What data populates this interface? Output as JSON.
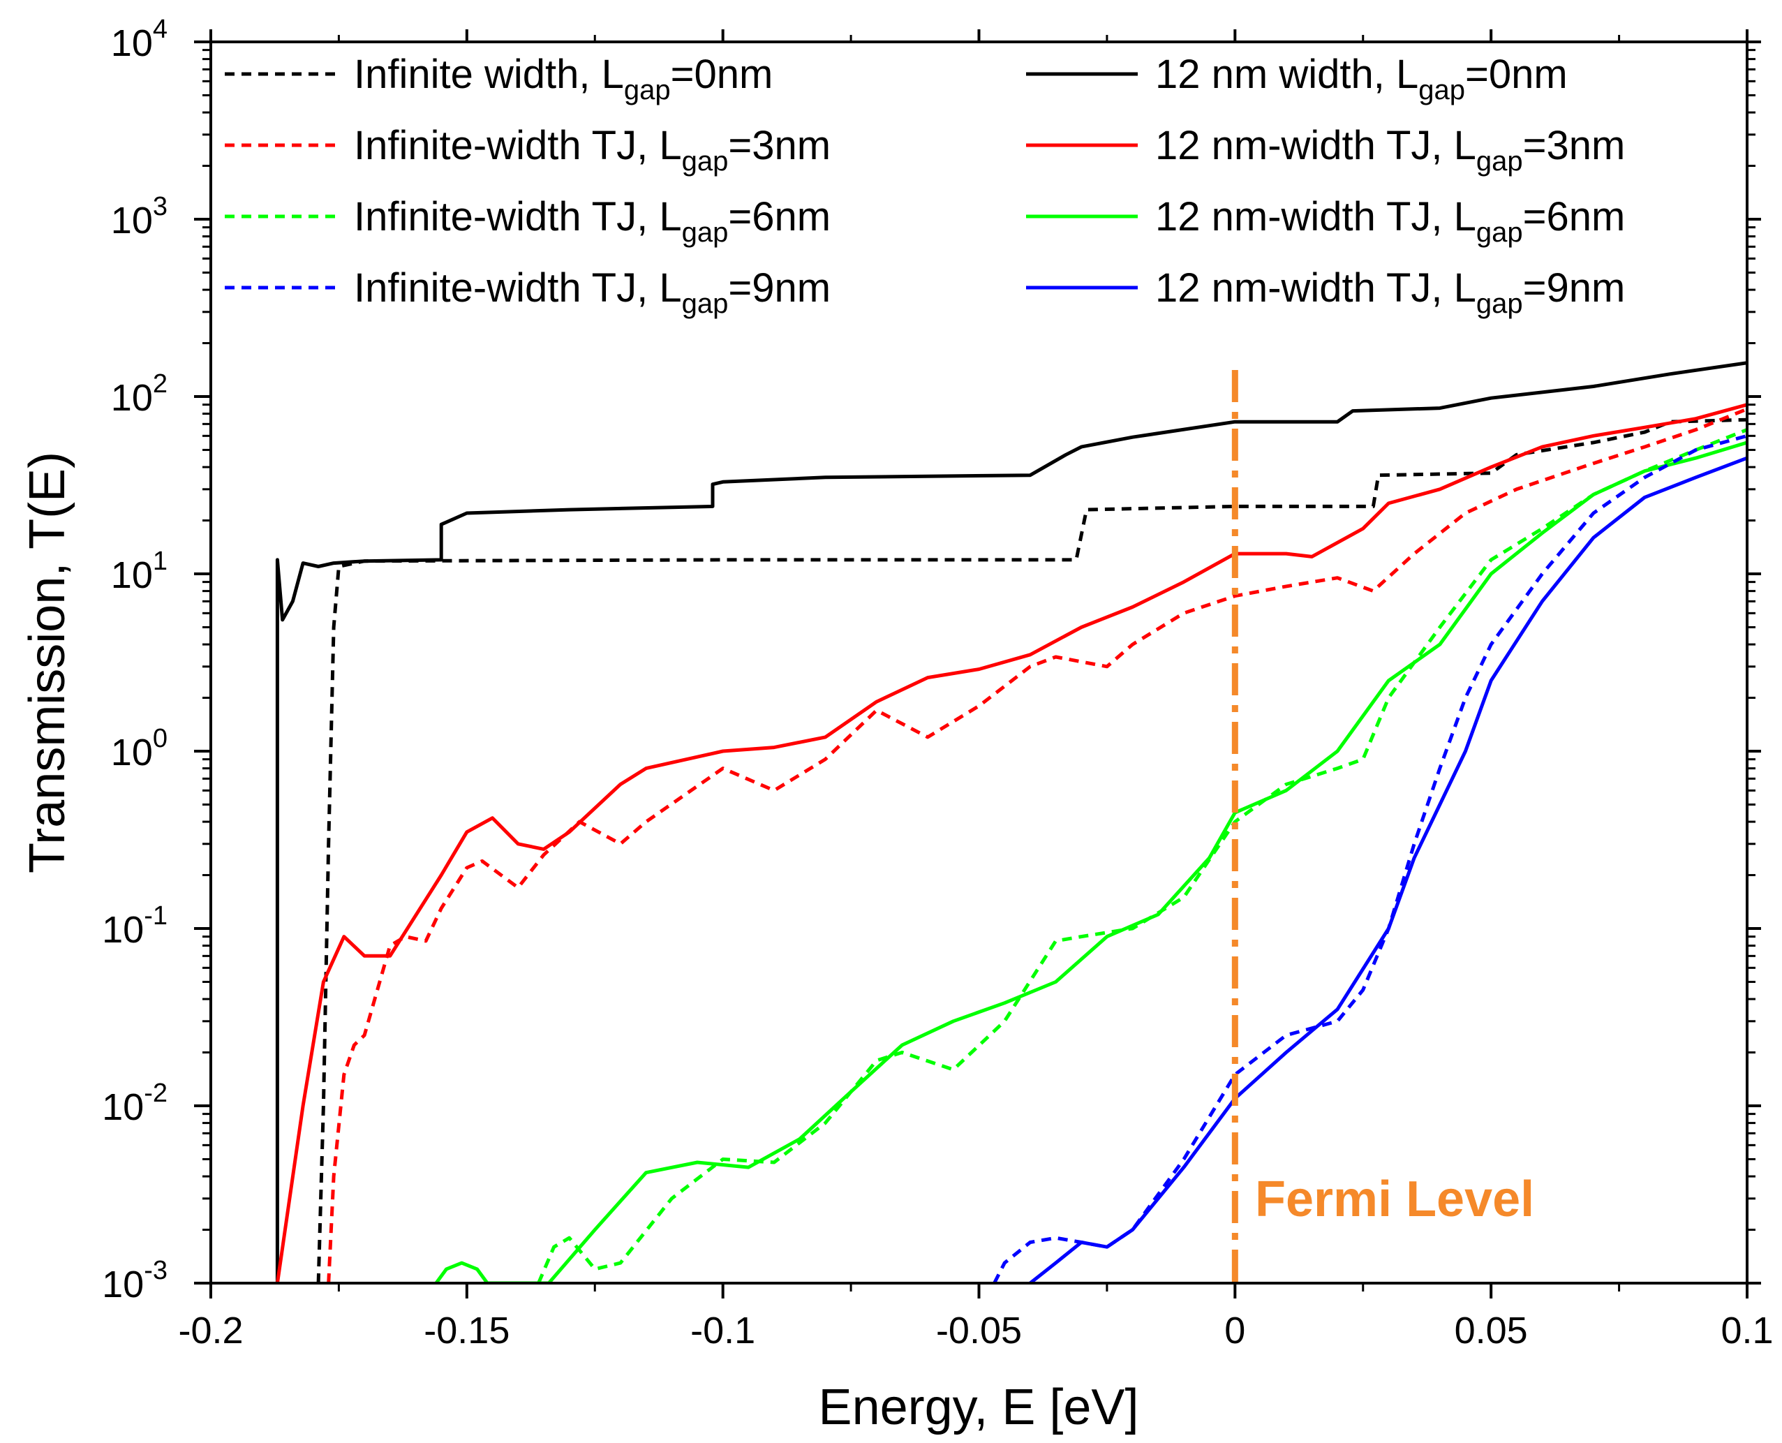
{
  "chart_data": {
    "type": "line",
    "title": "",
    "xlabel": "Energy, E [eV]",
    "ylabel": "Transmission, T(E)",
    "xlim": [
      -0.2,
      0.1
    ],
    "ylim": [
      0.001,
      10000
    ],
    "yscale": "log",
    "grid": false,
    "legend_placement": "top",
    "x_ticks": [
      -0.2,
      -0.15,
      -0.1,
      -0.05,
      0,
      0.05,
      0.1
    ],
    "x_tick_labels": [
      "-0.2",
      "-0.15",
      "-0.1",
      "-0.05",
      "0",
      "0.05",
      "0.1"
    ],
    "y_ticks": [
      {
        "value": 0.001,
        "base": "10",
        "exp": "-3"
      },
      {
        "value": 0.01,
        "base": "10",
        "exp": "-2"
      },
      {
        "value": 0.1,
        "base": "10",
        "exp": "-1"
      },
      {
        "value": 1,
        "base": "10",
        "exp": "0"
      },
      {
        "value": 10,
        "base": "10",
        "exp": "1"
      },
      {
        "value": 100,
        "base": "10",
        "exp": "2"
      },
      {
        "value": 1000,
        "base": "10",
        "exp": "3"
      },
      {
        "value": 10000,
        "base": "10",
        "exp": "4"
      }
    ],
    "annotation": {
      "text": "Fermi Level",
      "x": 0,
      "color": "#F5892A"
    },
    "series": [
      {
        "label_main": "Infinite width, L",
        "label_sub": "gap",
        "label_tail": "=0nm",
        "color": "#000000",
        "style": "dashed",
        "points": [
          [
            -0.179,
            0.001
          ],
          [
            -0.178,
            0.01
          ],
          [
            -0.177,
            0.3
          ],
          [
            -0.176,
            5
          ],
          [
            -0.175,
            11
          ],
          [
            -0.17,
            11.8
          ],
          [
            -0.1,
            12
          ],
          [
            -0.031,
            12
          ],
          [
            -0.029,
            23
          ],
          [
            0,
            24
          ],
          [
            0.027,
            24
          ],
          [
            0.028,
            36
          ],
          [
            0.05,
            37
          ],
          [
            0.055,
            47
          ],
          [
            0.07,
            55
          ],
          [
            0.08,
            63
          ],
          [
            0.085,
            72
          ],
          [
            0.1,
            74
          ]
        ]
      },
      {
        "label_main": "12 nm width, L",
        "label_sub": "gap",
        "label_tail": "=0nm",
        "color": "#000000",
        "style": "solid",
        "points": [
          [
            -0.187,
            0.001
          ],
          [
            -0.187,
            12
          ],
          [
            -0.186,
            5.5
          ],
          [
            -0.184,
            7
          ],
          [
            -0.182,
            11.5
          ],
          [
            -0.179,
            11
          ],
          [
            -0.176,
            11.5
          ],
          [
            -0.17,
            11.8
          ],
          [
            -0.155,
            12
          ],
          [
            -0.155,
            19
          ],
          [
            -0.15,
            22
          ],
          [
            -0.13,
            23
          ],
          [
            -0.102,
            24
          ],
          [
            -0.102,
            32
          ],
          [
            -0.1,
            33
          ],
          [
            -0.08,
            35
          ],
          [
            -0.04,
            36
          ],
          [
            -0.033,
            47
          ],
          [
            -0.03,
            52
          ],
          [
            -0.02,
            59
          ],
          [
            0,
            72
          ],
          [
            0.02,
            72
          ],
          [
            0.023,
            83
          ],
          [
            0.04,
            86
          ],
          [
            0.05,
            98
          ],
          [
            0.07,
            114
          ],
          [
            0.085,
            134
          ],
          [
            0.1,
            155
          ]
        ]
      },
      {
        "label_main": "Infinite-width TJ, L",
        "label_sub": "gap",
        "label_tail": "=3nm",
        "color": "#FF0000",
        "style": "dashed",
        "points": [
          [
            -0.177,
            0.001
          ],
          [
            -0.176,
            0.004
          ],
          [
            -0.174,
            0.015
          ],
          [
            -0.172,
            0.022
          ],
          [
            -0.17,
            0.025
          ],
          [
            -0.165,
            0.08
          ],
          [
            -0.162,
            0.09
          ],
          [
            -0.158,
            0.085
          ],
          [
            -0.155,
            0.13
          ],
          [
            -0.15,
            0.22
          ],
          [
            -0.147,
            0.24
          ],
          [
            -0.14,
            0.17
          ],
          [
            -0.135,
            0.26
          ],
          [
            -0.128,
            0.4
          ],
          [
            -0.12,
            0.3
          ],
          [
            -0.115,
            0.4
          ],
          [
            -0.1,
            0.8
          ],
          [
            -0.09,
            0.6
          ],
          [
            -0.08,
            0.9
          ],
          [
            -0.07,
            1.7
          ],
          [
            -0.06,
            1.2
          ],
          [
            -0.05,
            1.8
          ],
          [
            -0.04,
            3
          ],
          [
            -0.035,
            3.4
          ],
          [
            -0.025,
            3
          ],
          [
            -0.02,
            4
          ],
          [
            -0.01,
            6
          ],
          [
            0,
            7.5
          ],
          [
            0.01,
            8.5
          ],
          [
            0.02,
            9.5
          ],
          [
            0.027,
            8
          ],
          [
            0.035,
            13
          ],
          [
            0.045,
            22
          ],
          [
            0.055,
            30
          ],
          [
            0.07,
            42
          ],
          [
            0.08,
            52
          ],
          [
            0.09,
            65
          ],
          [
            0.1,
            85
          ]
        ]
      },
      {
        "label_main": "12 nm-width TJ, L",
        "label_sub": "gap",
        "label_tail": "=3nm",
        "color": "#FF0000",
        "style": "solid",
        "points": [
          [
            -0.187,
            0.001
          ],
          [
            -0.182,
            0.01
          ],
          [
            -0.178,
            0.05
          ],
          [
            -0.174,
            0.09
          ],
          [
            -0.17,
            0.07
          ],
          [
            -0.165,
            0.07
          ],
          [
            -0.155,
            0.2
          ],
          [
            -0.15,
            0.35
          ],
          [
            -0.145,
            0.42
          ],
          [
            -0.14,
            0.3
          ],
          [
            -0.135,
            0.28
          ],
          [
            -0.13,
            0.35
          ],
          [
            -0.12,
            0.65
          ],
          [
            -0.115,
            0.8
          ],
          [
            -0.1,
            1
          ],
          [
            -0.09,
            1.05
          ],
          [
            -0.08,
            1.2
          ],
          [
            -0.07,
            1.9
          ],
          [
            -0.06,
            2.6
          ],
          [
            -0.05,
            2.9
          ],
          [
            -0.04,
            3.5
          ],
          [
            -0.03,
            5
          ],
          [
            -0.02,
            6.5
          ],
          [
            -0.01,
            9
          ],
          [
            0,
            13
          ],
          [
            0.01,
            13
          ],
          [
            0.015,
            12.5
          ],
          [
            0.025,
            18
          ],
          [
            0.03,
            25
          ],
          [
            0.04,
            30
          ],
          [
            0.05,
            40
          ],
          [
            0.06,
            52
          ],
          [
            0.07,
            60
          ],
          [
            0.08,
            67
          ],
          [
            0.09,
            75
          ],
          [
            0.1,
            90
          ]
        ]
      },
      {
        "label_main": "Infinite-width TJ, L",
        "label_sub": "gap",
        "label_tail": "=6nm",
        "color": "#00FF00",
        "style": "dashed",
        "points": [
          [
            -0.136,
            0.001
          ],
          [
            -0.133,
            0.0016
          ],
          [
            -0.13,
            0.0018
          ],
          [
            -0.125,
            0.0012
          ],
          [
            -0.12,
            0.0013
          ],
          [
            -0.11,
            0.003
          ],
          [
            -0.1,
            0.005
          ],
          [
            -0.09,
            0.0048
          ],
          [
            -0.08,
            0.008
          ],
          [
            -0.07,
            0.018
          ],
          [
            -0.065,
            0.02
          ],
          [
            -0.055,
            0.016
          ],
          [
            -0.045,
            0.03
          ],
          [
            -0.035,
            0.085
          ],
          [
            -0.03,
            0.09
          ],
          [
            -0.02,
            0.1
          ],
          [
            -0.01,
            0.15
          ],
          [
            0,
            0.4
          ],
          [
            0.01,
            0.65
          ],
          [
            0.02,
            0.8
          ],
          [
            0.025,
            0.9
          ],
          [
            0.03,
            2
          ],
          [
            0.04,
            5
          ],
          [
            0.05,
            12
          ],
          [
            0.06,
            18
          ],
          [
            0.07,
            28
          ],
          [
            0.08,
            38
          ],
          [
            0.09,
            50
          ],
          [
            0.1,
            65
          ]
        ]
      },
      {
        "label_main": "12 nm-width TJ, L",
        "label_sub": "gap",
        "label_tail": "=6nm",
        "color": "#00FF00",
        "style": "solid",
        "points": [
          [
            -0.156,
            0.001
          ],
          [
            -0.154,
            0.0012
          ],
          [
            -0.151,
            0.0013
          ],
          [
            -0.148,
            0.0012
          ],
          [
            -0.146,
            0.001
          ],
          [
            -0.134,
            0.001
          ],
          [
            -0.125,
            0.002
          ],
          [
            -0.115,
            0.0042
          ],
          [
            -0.105,
            0.0048
          ],
          [
            -0.095,
            0.0045
          ],
          [
            -0.085,
            0.0065
          ],
          [
            -0.075,
            0.012
          ],
          [
            -0.065,
            0.022
          ],
          [
            -0.055,
            0.03
          ],
          [
            -0.045,
            0.038
          ],
          [
            -0.035,
            0.05
          ],
          [
            -0.025,
            0.09
          ],
          [
            -0.015,
            0.12
          ],
          [
            -0.005,
            0.25
          ],
          [
            0,
            0.45
          ],
          [
            0.01,
            0.6
          ],
          [
            0.02,
            1
          ],
          [
            0.03,
            2.5
          ],
          [
            0.04,
            4
          ],
          [
            0.05,
            10
          ],
          [
            0.06,
            17
          ],
          [
            0.07,
            28
          ],
          [
            0.08,
            38
          ],
          [
            0.09,
            45
          ],
          [
            0.1,
            55
          ]
        ]
      },
      {
        "label_main": "Infinite-width TJ, L",
        "label_sub": "gap",
        "label_tail": "=9nm",
        "color": "#0000FF",
        "style": "dashed",
        "points": [
          [
            -0.047,
            0.001
          ],
          [
            -0.045,
            0.0013
          ],
          [
            -0.04,
            0.0017
          ],
          [
            -0.035,
            0.0018
          ],
          [
            -0.03,
            0.0017
          ],
          [
            -0.025,
            0.0016
          ],
          [
            -0.02,
            0.002
          ],
          [
            -0.01,
            0.005
          ],
          [
            0,
            0.015
          ],
          [
            0.01,
            0.025
          ],
          [
            0.02,
            0.03
          ],
          [
            0.025,
            0.045
          ],
          [
            0.03,
            0.1
          ],
          [
            0.035,
            0.3
          ],
          [
            0.04,
            0.8
          ],
          [
            0.045,
            2
          ],
          [
            0.05,
            4
          ],
          [
            0.06,
            10
          ],
          [
            0.07,
            22
          ],
          [
            0.08,
            35
          ],
          [
            0.09,
            50
          ],
          [
            0.1,
            60
          ]
        ]
      },
      {
        "label_main": "12 nm-width TJ, L",
        "label_sub": "gap",
        "label_tail": "=9nm",
        "color": "#0000FF",
        "style": "solid",
        "points": [
          [
            -0.04,
            0.001
          ],
          [
            -0.035,
            0.0013
          ],
          [
            -0.03,
            0.0017
          ],
          [
            -0.025,
            0.0016
          ],
          [
            -0.02,
            0.002
          ],
          [
            -0.01,
            0.0045
          ],
          [
            0,
            0.011
          ],
          [
            0.01,
            0.02
          ],
          [
            0.02,
            0.035
          ],
          [
            0.03,
            0.1
          ],
          [
            0.035,
            0.25
          ],
          [
            0.04,
            0.5
          ],
          [
            0.045,
            1
          ],
          [
            0.05,
            2.5
          ],
          [
            0.06,
            7
          ],
          [
            0.07,
            16
          ],
          [
            0.08,
            27
          ],
          [
            0.09,
            35
          ],
          [
            0.1,
            45
          ]
        ]
      }
    ]
  }
}
